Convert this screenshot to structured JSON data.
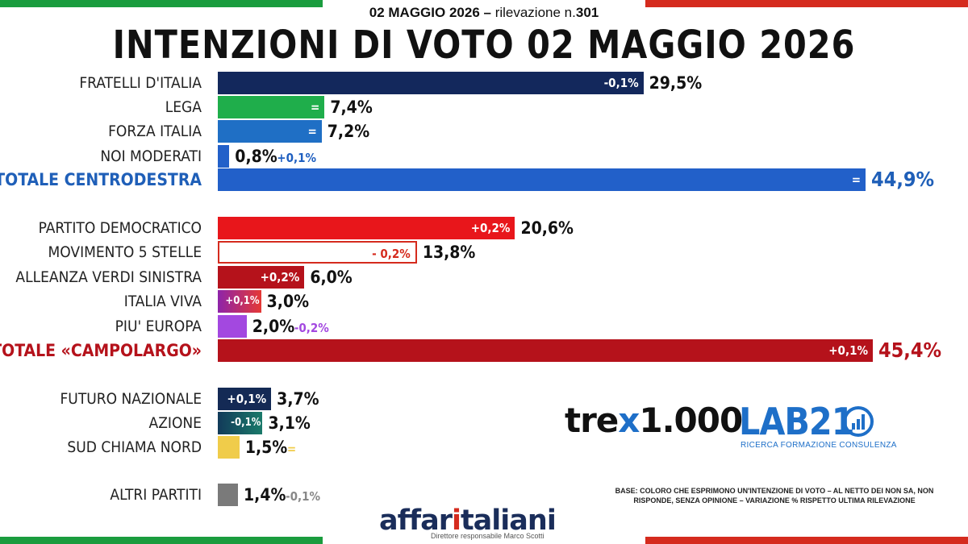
{
  "header": {
    "subtitle_date": "02 MAGGIO 2026 –",
    "subtitle_rest": "rilevazione n.",
    "subtitle_num": "301",
    "title": "INTENZIONI DI VOTO 02 MAGGIO 2026"
  },
  "colors": {
    "fdi": "#13285c",
    "lega": "#1fae4b",
    "fi": "#1f6fc5",
    "noi": "#2260c9",
    "cdx": "#2260c9",
    "pd": "#e8161b",
    "m5s_border": "#d52b1e",
    "avs": "#b5121b",
    "iv": "#c2185b",
    "pe": "#a348e0",
    "campolargo": "#b5121b",
    "fn": "#142a55",
    "azione": "#135a6b",
    "scn": "#f0cc4a",
    "altri": "#7a7a7a"
  },
  "chart_data": {
    "type": "bar",
    "title": "INTENZIONI DI VOTO 02 MAGGIO 2026",
    "xlim": [
      0,
      45.4
    ],
    "items": [
      {
        "label": "FRATELLI D'ITALIA",
        "value": 29.5,
        "value_text": "29,5%",
        "change": "-0,1%",
        "change_pos": "inside",
        "color_key": "fdi",
        "total": false
      },
      {
        "label": "LEGA",
        "value": 7.4,
        "value_text": "7,4%",
        "change": "=",
        "change_pos": "inside",
        "color_key": "lega",
        "total": false
      },
      {
        "label": "FORZA ITALIA",
        "value": 7.2,
        "value_text": "7,2%",
        "change": "=",
        "change_pos": "inside",
        "color_key": "fi",
        "total": false
      },
      {
        "label": "NOI MODERATI",
        "value": 0.8,
        "value_text": "0,8%",
        "change": "+0,1%",
        "change_pos": "outside",
        "change_color": "#1f5fc0",
        "color_key": "noi",
        "total": false
      },
      {
        "label": "TOTALE CENTRODESTRA",
        "value": 44.9,
        "value_text": "44,9%",
        "change": "=",
        "change_pos": "inside",
        "color_key": "cdx",
        "total": true,
        "text_color": "#1f5fb8"
      },
      {
        "label": "PARTITO DEMOCRATICO",
        "value": 20.6,
        "value_text": "20,6%",
        "change": "+0,2%",
        "change_pos": "inside",
        "color_key": "pd",
        "total": false
      },
      {
        "label": "MOVIMENTO 5 STELLE",
        "value": 13.8,
        "value_text": "13,8%",
        "change": "- 0,2%",
        "change_pos": "inside",
        "color_key": "m5s_border",
        "outline": true,
        "total": false
      },
      {
        "label": "ALLEANZA VERDI SINISTRA",
        "value": 6.0,
        "value_text": "6,0%",
        "change": "+0,2%",
        "change_pos": "inside",
        "color_key": "avs",
        "total": false
      },
      {
        "label": "ITALIA VIVA",
        "value": 3.0,
        "value_text": "3,0%",
        "change": "+0,1%",
        "change_pos": "inside",
        "color_key": "iv",
        "total": false
      },
      {
        "label": "PIU' EUROPA",
        "value": 2.0,
        "value_text": "2,0%",
        "change": "-0,2%",
        "change_pos": "outside",
        "change_color": "#a348e0",
        "color_key": "pe",
        "total": false
      },
      {
        "label": "TOTALE «CAMPOLARGO»",
        "value": 45.4,
        "value_text": "45,4%",
        "change": "+0,1%",
        "change_pos": "inside",
        "color_key": "campolargo",
        "total": true,
        "text_color": "#b5121b"
      },
      {
        "label": "FUTURO NAZIONALE",
        "value": 3.7,
        "value_text": "3,7%",
        "change": "+0,1%",
        "change_pos": "inside",
        "color_key": "fn",
        "total": false
      },
      {
        "label": "AZIONE",
        "value": 3.1,
        "value_text": "3,1%",
        "change": "-0,1%",
        "change_pos": "inside",
        "color_key": "azione",
        "total": false
      },
      {
        "label": "SUD CHIAMA NORD",
        "value": 1.5,
        "value_text": "1,5%",
        "change": "=",
        "change_pos": "outside",
        "change_color": "#f0cc4a",
        "color_key": "scn",
        "total": false
      },
      {
        "label": "ALTRI PARTITI",
        "value": 1.4,
        "value_text": "1,4%",
        "change": "-0,1%",
        "change_pos": "outside",
        "change_color": "#888888",
        "color_key": "altri",
        "total": false
      }
    ]
  },
  "logos": {
    "trex_a": "tre",
    "trex_x": "x",
    "trex_b": "1.000",
    "lab21": "LAB21",
    "lab21_sub": "RICERCA FORMAZIONE CONSULENZA",
    "affari_a": "affar",
    "affari_one": "i",
    "affari_b": "taliani",
    "director": "Direttore responsabile Marco Scotti"
  },
  "base_note": "BASE: COLORO CHE ESPRIMONO UN'INTENZIONE DI VOTO – AL NETTO DEI NON SA, NON RISPONDE, SENZA OPINIONE – VARIAZIONE % RISPETTO ULTIMA RILEVAZIONE"
}
